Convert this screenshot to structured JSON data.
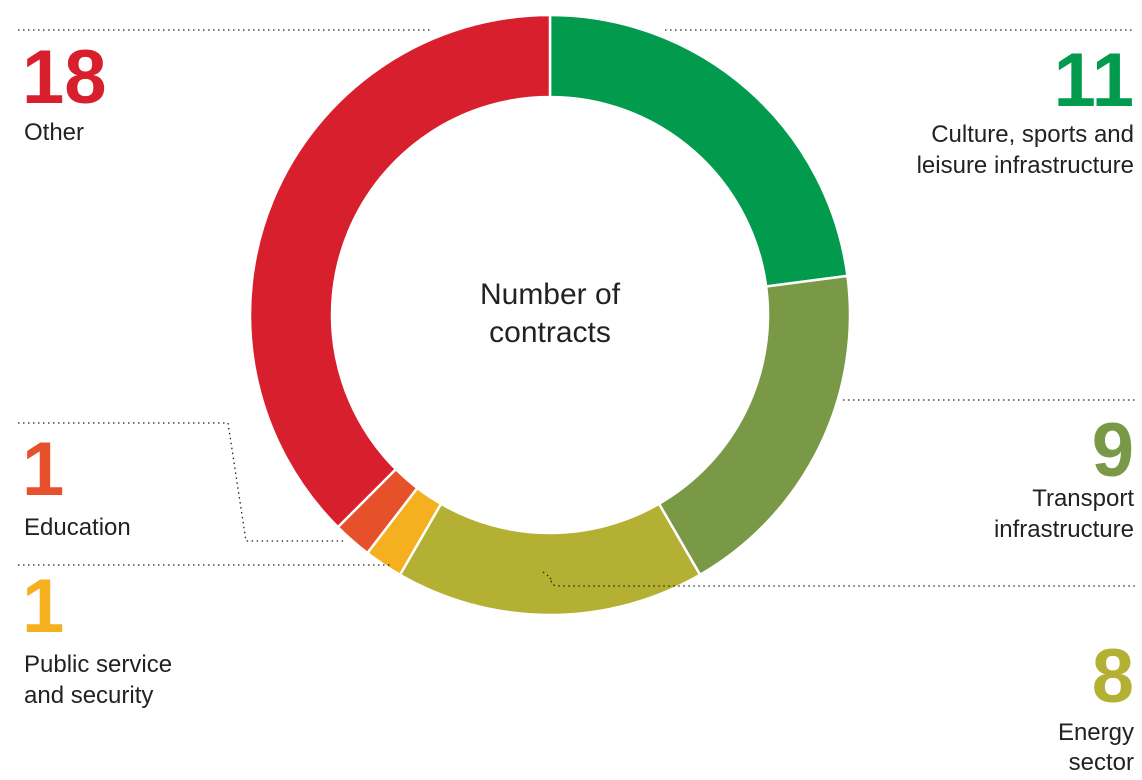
{
  "chart_data": {
    "type": "donut",
    "center_label": [
      "Number of",
      "contracts"
    ],
    "slices": [
      {
        "label": [
          "Culture, sports and",
          "leisure infrastructure"
        ],
        "value": 11,
        "color": "#029a4c"
      },
      {
        "label": [
          "Transport",
          "infrastructure"
        ],
        "value": 9,
        "color": "#799946"
      },
      {
        "label": [
          "Energy",
          "sector"
        ],
        "value": 8,
        "color": "#b3b033"
      },
      {
        "label": [
          "Public service",
          "and security"
        ],
        "value": 1,
        "color": "#f4b01e"
      },
      {
        "label": [
          "Education"
        ],
        "value": 1,
        "color": "#e6502a"
      },
      {
        "label": [
          "Other"
        ],
        "value": 18,
        "color": "#d81f2d"
      }
    ]
  }
}
